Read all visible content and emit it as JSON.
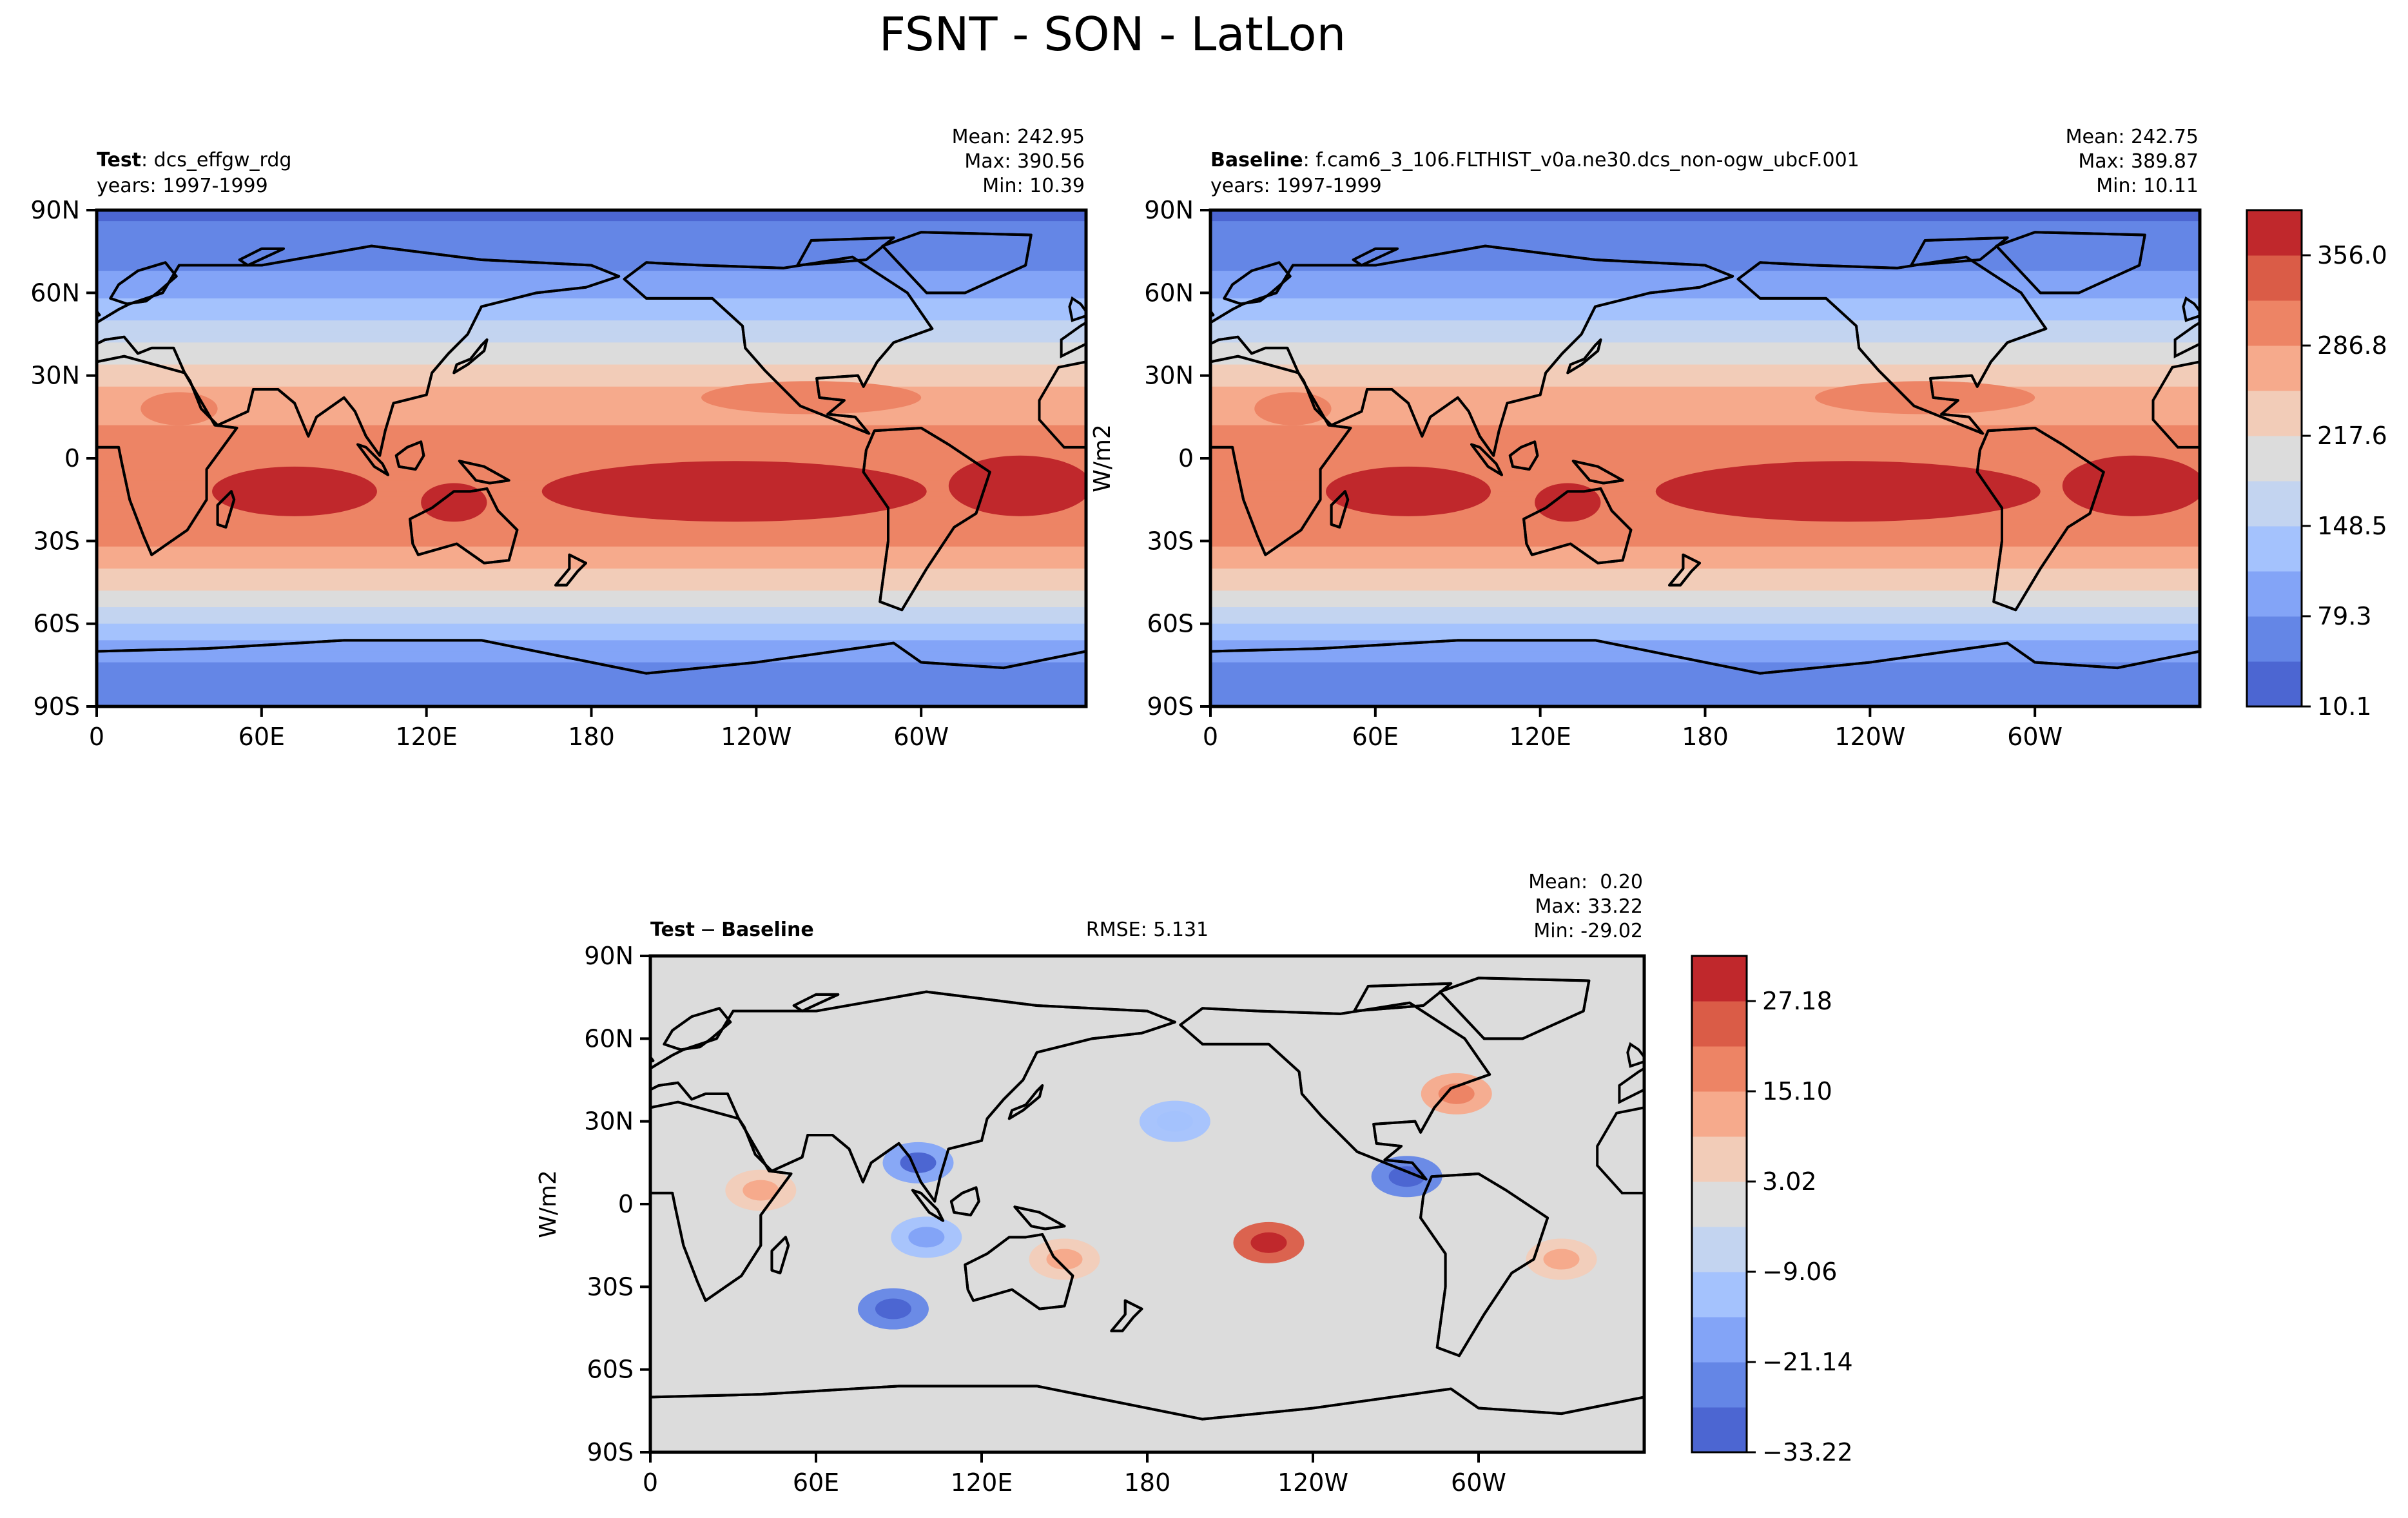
{
  "figure": {
    "title": "FSNT - SON - LatLon"
  },
  "colors": {
    "main_levels": [
      "#4c66d2",
      "#6486e6",
      "#83a4f7",
      "#a4c2fd",
      "#c3d4f0",
      "#dcdcdc",
      "#f2ccb8",
      "#f6aa8c",
      "#ed8465",
      "#da5c47",
      "#c0282c"
    ],
    "diff_levels": [
      "#4c66d2",
      "#6486e6",
      "#83a4f7",
      "#a4c2fd",
      "#c3d4f0",
      "#dcdcdc",
      "#f2ccb8",
      "#f6aa8c",
      "#ed8465",
      "#da5c47",
      "#c0282c"
    ],
    "land_outline": "#000000",
    "axis": "#000000"
  },
  "chart_data": [
    {
      "type": "heatmap",
      "panel": "test",
      "label_bold": "Test",
      "label_text": ": dcs_effgw_rdg",
      "years": "years: 1997-1999",
      "stats": {
        "mean": "Mean: 242.95",
        "max": "Max: 390.56",
        "min": "Min: 10.39"
      },
      "x_ticks": [
        "0",
        "60E",
        "120E",
        "180",
        "120W",
        "60W"
      ],
      "x_tick_lons": [
        0,
        60,
        120,
        180,
        240,
        300
      ],
      "xlim": [
        0,
        360
      ],
      "y_ticks": [
        "90N",
        "60N",
        "30N",
        "0",
        "30S",
        "60S",
        "90S"
      ],
      "y_tick_lats": [
        90,
        60,
        30,
        0,
        -30,
        -60,
        -90
      ],
      "ylim": [
        -90,
        90
      ],
      "colorbar_levels": [
        10.1,
        44.7,
        79.3,
        113.9,
        148.5,
        183.0,
        217.6,
        252.2,
        286.8,
        321.4,
        356.0,
        390.6
      ],
      "zonal_profile": [
        {
          "lat": 90,
          "value": 40
        },
        {
          "lat": 75,
          "value": 60
        },
        {
          "lat": 60,
          "value": 100
        },
        {
          "lat": 45,
          "value": 170
        },
        {
          "lat": 30,
          "value": 240
        },
        {
          "lat": 15,
          "value": 280
        },
        {
          "lat": 0,
          "value": 310
        },
        {
          "lat": -15,
          "value": 320
        },
        {
          "lat": -30,
          "value": 300
        },
        {
          "lat": -45,
          "value": 230
        },
        {
          "lat": -60,
          "value": 150
        },
        {
          "lat": -75,
          "value": 70
        },
        {
          "lat": -90,
          "value": 45
        }
      ]
    },
    {
      "type": "heatmap",
      "panel": "baseline",
      "label_bold": "Baseline",
      "label_text": ": f.cam6_3_106.FLTHIST_v0a.ne30.dcs_non-ogw_ubcF.001",
      "years": "years: 1997-1999",
      "stats": {
        "mean": "Mean: 242.75",
        "max": "Max: 389.87",
        "min": "Min: 10.11"
      },
      "x_ticks": [
        "0",
        "60E",
        "120E",
        "180",
        "120W",
        "60W"
      ],
      "x_tick_lons": [
        0,
        60,
        120,
        180,
        240,
        300
      ],
      "xlim": [
        0,
        360
      ],
      "y_ticks": [
        "90N",
        "60N",
        "30N",
        "0",
        "30S",
        "60S",
        "90S"
      ],
      "y_tick_lats": [
        90,
        60,
        30,
        0,
        -30,
        -60,
        -90
      ],
      "ylim": [
        -90,
        90
      ],
      "ylabel": "W/m2",
      "colorbar_ticks": [
        "356.0",
        "286.8",
        "217.6",
        "148.5",
        "79.3",
        "10.1"
      ],
      "colorbar_tick_values": [
        356.0,
        286.8,
        217.6,
        148.5,
        79.3,
        10.1
      ],
      "colorbar_range": [
        10.1,
        390.6
      ],
      "zonal_profile": [
        {
          "lat": 90,
          "value": 40
        },
        {
          "lat": 75,
          "value": 60
        },
        {
          "lat": 60,
          "value": 100
        },
        {
          "lat": 45,
          "value": 170
        },
        {
          "lat": 30,
          "value": 240
        },
        {
          "lat": 15,
          "value": 280
        },
        {
          "lat": 0,
          "value": 310
        },
        {
          "lat": -15,
          "value": 320
        },
        {
          "lat": -30,
          "value": 300
        },
        {
          "lat": -45,
          "value": 230
        },
        {
          "lat": -60,
          "value": 150
        },
        {
          "lat": -75,
          "value": 70
        },
        {
          "lat": -90,
          "value": 45
        }
      ]
    },
    {
      "type": "heatmap",
      "panel": "difference",
      "label_bold": "Test",
      "label_op": "−",
      "label_bold2": "Baseline",
      "rmse": "RMSE: 5.131",
      "stats": {
        "mean": "Mean:  0.20",
        "max": "Max: 33.22",
        "min": "Min: -29.02"
      },
      "x_ticks": [
        "0",
        "60E",
        "120E",
        "180",
        "120W",
        "60W"
      ],
      "x_tick_lons": [
        0,
        60,
        120,
        180,
        240,
        300
      ],
      "xlim": [
        0,
        360
      ],
      "y_ticks": [
        "90N",
        "60N",
        "30N",
        "0",
        "30S",
        "60S",
        "90S"
      ],
      "y_tick_lats": [
        90,
        60,
        30,
        0,
        -30,
        -60,
        -90
      ],
      "ylim": [
        -90,
        90
      ],
      "ylabel": "W/m2",
      "colorbar_ticks": [
        "27.18",
        "15.10",
        "3.02",
        "−9.06",
        "−21.14",
        "−33.22"
      ],
      "colorbar_tick_values": [
        27.18,
        15.1,
        3.02,
        -9.06,
        -21.14,
        -33.22
      ],
      "colorbar_range": [
        -33.22,
        33.22
      ],
      "anomalies": [
        {
          "lon": 97,
          "lat": 15,
          "value": -20
        },
        {
          "lon": 100,
          "lat": -12,
          "value": -14
        },
        {
          "lon": 88,
          "lat": -38,
          "value": -22
        },
        {
          "lon": 224,
          "lat": -14,
          "value": 26
        },
        {
          "lon": 274,
          "lat": 10,
          "value": -26
        },
        {
          "lon": 292,
          "lat": 40,
          "value": 12
        },
        {
          "lon": 150,
          "lat": -20,
          "value": 9
        },
        {
          "lon": 40,
          "lat": 5,
          "value": 8
        },
        {
          "lon": 190,
          "lat": 30,
          "value": -10
        },
        {
          "lon": 330,
          "lat": -20,
          "value": 8
        }
      ]
    }
  ]
}
